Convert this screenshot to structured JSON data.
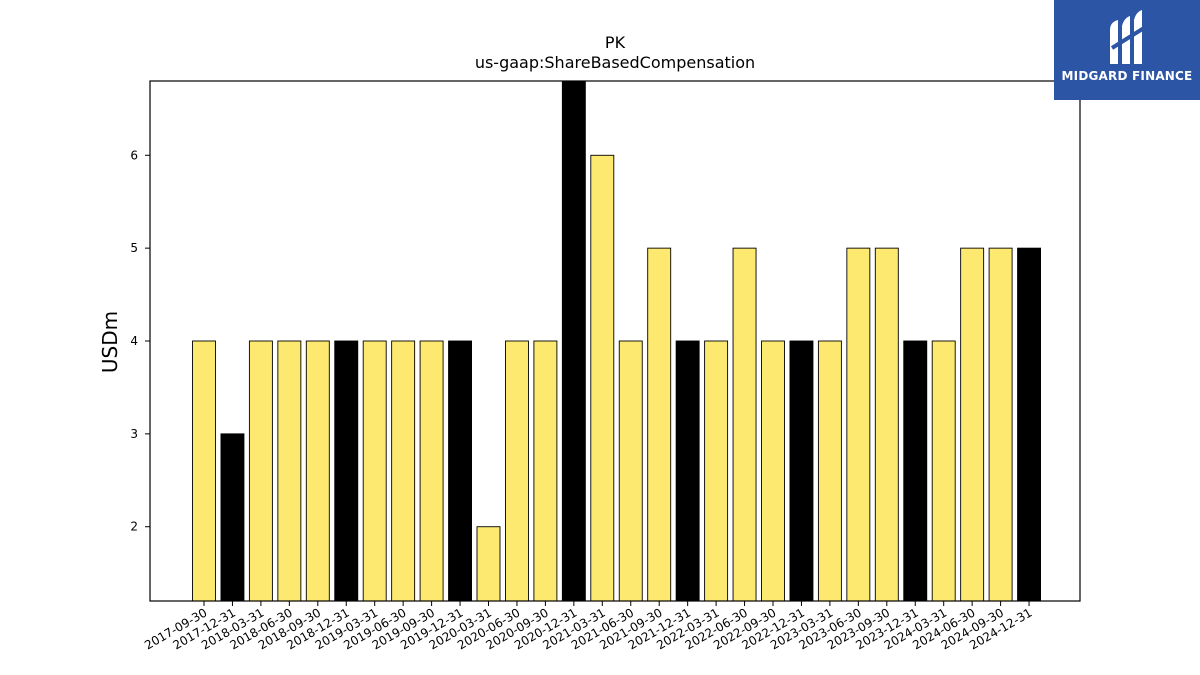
{
  "chart_data": {
    "type": "bar",
    "title": "PK",
    "subtitle": "us-gaap:ShareBasedCompensation",
    "xlabel": "",
    "ylabel": "USDm",
    "ylim": [
      1.2,
      6.8
    ],
    "yticks": [
      2,
      3,
      4,
      5,
      6
    ],
    "grid": false,
    "colors": {
      "q1_q3": "#fde96f",
      "q4": "#000000",
      "edge": "#000000"
    },
    "categories": [
      "2017-09-30",
      "2017-12-31",
      "2018-03-31",
      "2018-06-30",
      "2018-09-30",
      "2018-12-31",
      "2019-03-31",
      "2019-06-30",
      "2019-09-30",
      "2019-12-31",
      "2020-03-31",
      "2020-06-30",
      "2020-09-30",
      "2020-12-31",
      "2021-03-31",
      "2021-06-30",
      "2021-09-30",
      "2021-12-31",
      "2022-03-31",
      "2022-06-30",
      "2022-09-30",
      "2022-12-31",
      "2023-03-31",
      "2023-06-30",
      "2023-09-30",
      "2023-12-31",
      "2024-03-31",
      "2024-06-30",
      "2024-09-30",
      "2024-12-31"
    ],
    "values": [
      4,
      3,
      4,
      4,
      4,
      4,
      4,
      4,
      4,
      4,
      2,
      4,
      4,
      7,
      6,
      4,
      5,
      4,
      4,
      5,
      4,
      4,
      4,
      5,
      5,
      4,
      4,
      5,
      5,
      5
    ]
  },
  "logo": {
    "text": "MIDGARD FINANCE",
    "background": "#2c55a6"
  }
}
